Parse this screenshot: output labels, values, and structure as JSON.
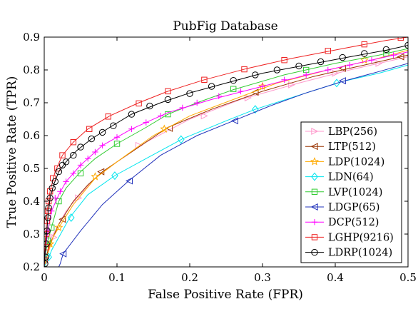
{
  "chart_data": {
    "type": "line",
    "title": "PubFig Database",
    "xlabel": "False Positive Rate (FPR)",
    "ylabel": "True Positive Rate (TPR)",
    "xlim": [
      0,
      0.5
    ],
    "ylim": [
      0.2,
      0.9
    ],
    "x_ticks": [
      "0",
      "0.1",
      "0.2",
      "0.3",
      "0.4",
      "0.5"
    ],
    "y_ticks": [
      "0.2",
      "0.3",
      "0.4",
      "0.5",
      "0.6",
      "0.7",
      "0.8",
      "0.9"
    ],
    "grid": false,
    "legend_position": "bottom-right",
    "series": [
      {
        "name": "LBP(256)",
        "color": "#ff99cc",
        "marker": "triangle-right",
        "points": [
          [
            0.0,
            0.2
          ],
          [
            0.002,
            0.22
          ],
          [
            0.005,
            0.25
          ],
          [
            0.01,
            0.29
          ],
          [
            0.02,
            0.33
          ],
          [
            0.03,
            0.37
          ],
          [
            0.045,
            0.41
          ],
          [
            0.07,
            0.47
          ],
          [
            0.1,
            0.52
          ],
          [
            0.14,
            0.58
          ],
          [
            0.2,
            0.65
          ],
          [
            0.27,
            0.71
          ],
          [
            0.35,
            0.76
          ],
          [
            0.42,
            0.8
          ],
          [
            0.5,
            0.84
          ]
        ],
        "markers": [
          [
            0.013,
            0.29
          ],
          [
            0.047,
            0.41
          ],
          [
            0.13,
            0.57
          ],
          [
            0.22,
            0.66
          ],
          [
            0.28,
            0.715
          ],
          [
            0.34,
            0.755
          ],
          [
            0.4,
            0.79
          ],
          [
            0.46,
            0.82
          ]
        ]
      },
      {
        "name": "LTP(512)",
        "color": "#993300",
        "marker": "triangle-left",
        "points": [
          [
            0.0,
            0.2
          ],
          [
            0.005,
            0.25
          ],
          [
            0.01,
            0.28
          ],
          [
            0.02,
            0.33
          ],
          [
            0.04,
            0.4
          ],
          [
            0.06,
            0.45
          ],
          [
            0.08,
            0.49
          ],
          [
            0.12,
            0.55
          ],
          [
            0.17,
            0.625
          ],
          [
            0.23,
            0.68
          ],
          [
            0.3,
            0.735
          ],
          [
            0.37,
            0.78
          ],
          [
            0.43,
            0.81
          ],
          [
            0.5,
            0.845
          ]
        ],
        "markers": [
          [
            0.025,
            0.345
          ],
          [
            0.078,
            0.49
          ],
          [
            0.172,
            0.622
          ],
          [
            0.29,
            0.732
          ],
          [
            0.41,
            0.805
          ],
          [
            0.49,
            0.84
          ]
        ]
      },
      {
        "name": "LDP(1024)",
        "color": "#ffaa00",
        "marker": "star",
        "points": [
          [
            0.0,
            0.2
          ],
          [
            0.005,
            0.24
          ],
          [
            0.012,
            0.29
          ],
          [
            0.02,
            0.32
          ],
          [
            0.04,
            0.39
          ],
          [
            0.07,
            0.47
          ],
          [
            0.1,
            0.52
          ],
          [
            0.15,
            0.6
          ],
          [
            0.2,
            0.66
          ],
          [
            0.26,
            0.71
          ],
          [
            0.32,
            0.76
          ],
          [
            0.39,
            0.8
          ],
          [
            0.45,
            0.83
          ],
          [
            0.5,
            0.86
          ]
        ],
        "markers": [
          [
            0.008,
            0.27
          ],
          [
            0.02,
            0.32
          ],
          [
            0.07,
            0.475
          ],
          [
            0.165,
            0.62
          ],
          [
            0.3,
            0.75
          ],
          [
            0.44,
            0.83
          ]
        ]
      },
      {
        "name": "LDN(64)",
        "color": "#00e5ee",
        "marker": "diamond",
        "points": [
          [
            0.0,
            0.2
          ],
          [
            0.005,
            0.22
          ],
          [
            0.01,
            0.25
          ],
          [
            0.02,
            0.29
          ],
          [
            0.035,
            0.35
          ],
          [
            0.06,
            0.42
          ],
          [
            0.097,
            0.478
          ],
          [
            0.14,
            0.53
          ],
          [
            0.19,
            0.59
          ],
          [
            0.25,
            0.645
          ],
          [
            0.29,
            0.68
          ],
          [
            0.36,
            0.73
          ],
          [
            0.41,
            0.765
          ],
          [
            0.46,
            0.79
          ],
          [
            0.5,
            0.815
          ]
        ],
        "markers": [
          [
            0.006,
            0.23
          ],
          [
            0.037,
            0.35
          ],
          [
            0.097,
            0.478
          ],
          [
            0.188,
            0.588
          ],
          [
            0.29,
            0.68
          ],
          [
            0.402,
            0.76
          ]
        ]
      },
      {
        "name": "LVP(1024)",
        "color": "#33cc33",
        "marker": "square",
        "points": [
          [
            0.0,
            0.2
          ],
          [
            0.002,
            0.24
          ],
          [
            0.005,
            0.28
          ],
          [
            0.01,
            0.32
          ],
          [
            0.02,
            0.4
          ],
          [
            0.03,
            0.44
          ],
          [
            0.05,
            0.49
          ],
          [
            0.07,
            0.53
          ],
          [
            0.1,
            0.575
          ],
          [
            0.14,
            0.625
          ],
          [
            0.17,
            0.665
          ],
          [
            0.21,
            0.7
          ],
          [
            0.26,
            0.74
          ],
          [
            0.33,
            0.785
          ],
          [
            0.4,
            0.82
          ],
          [
            0.46,
            0.845
          ],
          [
            0.5,
            0.865
          ]
        ],
        "markers": [
          [
            0.005,
            0.28
          ],
          [
            0.01,
            0.32
          ],
          [
            0.02,
            0.4
          ],
          [
            0.05,
            0.485
          ],
          [
            0.1,
            0.575
          ],
          [
            0.17,
            0.665
          ],
          [
            0.26,
            0.742
          ],
          [
            0.36,
            0.8
          ],
          [
            0.47,
            0.85
          ]
        ]
      },
      {
        "name": "LDGP(65)",
        "color": "#2233bb",
        "marker": "triangle-left",
        "points": [
          [
            0.02,
            0.2
          ],
          [
            0.022,
            0.21
          ],
          [
            0.026,
            0.24
          ],
          [
            0.05,
            0.31
          ],
          [
            0.08,
            0.39
          ],
          [
            0.115,
            0.46
          ],
          [
            0.16,
            0.54
          ],
          [
            0.21,
            0.6
          ],
          [
            0.26,
            0.645
          ],
          [
            0.31,
            0.69
          ],
          [
            0.36,
            0.73
          ],
          [
            0.41,
            0.765
          ],
          [
            0.46,
            0.795
          ],
          [
            0.5,
            0.82
          ]
        ],
        "markers": [
          [
            0.026,
            0.24
          ],
          [
            0.117,
            0.462
          ],
          [
            0.262,
            0.645
          ],
          [
            0.41,
            0.767
          ]
        ]
      },
      {
        "name": "DCP(512)",
        "color": "#ff00ff",
        "marker": "plus",
        "points": [
          [
            0.0,
            0.2
          ],
          [
            0.002,
            0.26
          ],
          [
            0.005,
            0.31
          ],
          [
            0.01,
            0.37
          ],
          [
            0.02,
            0.42
          ],
          [
            0.03,
            0.46
          ],
          [
            0.05,
            0.51
          ],
          [
            0.08,
            0.57
          ],
          [
            0.12,
            0.62
          ],
          [
            0.17,
            0.67
          ],
          [
            0.23,
            0.71
          ],
          [
            0.3,
            0.75
          ],
          [
            0.37,
            0.79
          ],
          [
            0.44,
            0.825
          ],
          [
            0.5,
            0.855
          ]
        ],
        "markers": [
          [
            0.005,
            0.31
          ],
          [
            0.01,
            0.37
          ],
          [
            0.015,
            0.41
          ],
          [
            0.022,
            0.43
          ],
          [
            0.03,
            0.46
          ],
          [
            0.04,
            0.485
          ],
          [
            0.05,
            0.51
          ],
          [
            0.06,
            0.53
          ],
          [
            0.07,
            0.55
          ],
          [
            0.08,
            0.57
          ],
          [
            0.1,
            0.595
          ],
          [
            0.12,
            0.62
          ],
          [
            0.14,
            0.64
          ],
          [
            0.16,
            0.66
          ],
          [
            0.19,
            0.685
          ],
          [
            0.21,
            0.7
          ],
          [
            0.24,
            0.72
          ],
          [
            0.27,
            0.735
          ],
          [
            0.3,
            0.75
          ],
          [
            0.33,
            0.77
          ],
          [
            0.36,
            0.785
          ],
          [
            0.39,
            0.8
          ],
          [
            0.42,
            0.815
          ],
          [
            0.45,
            0.83
          ],
          [
            0.48,
            0.845
          ]
        ]
      },
      {
        "name": "LGHP(9216)",
        "color": "#ee2222",
        "marker": "square",
        "points": [
          [
            0.0,
            0.2
          ],
          [
            0.001,
            0.25
          ],
          [
            0.002,
            0.3
          ],
          [
            0.004,
            0.37
          ],
          [
            0.008,
            0.43
          ],
          [
            0.015,
            0.49
          ],
          [
            0.025,
            0.54
          ],
          [
            0.04,
            0.58
          ],
          [
            0.06,
            0.62
          ],
          [
            0.09,
            0.66
          ],
          [
            0.13,
            0.7
          ],
          [
            0.17,
            0.735
          ],
          [
            0.22,
            0.77
          ],
          [
            0.28,
            0.805
          ],
          [
            0.34,
            0.835
          ],
          [
            0.41,
            0.865
          ],
          [
            0.47,
            0.89
          ],
          [
            0.5,
            0.9
          ]
        ],
        "markers": [
          [
            0.001,
            0.22
          ],
          [
            0.002,
            0.26
          ],
          [
            0.003,
            0.3
          ],
          [
            0.004,
            0.34
          ],
          [
            0.005,
            0.37
          ],
          [
            0.006,
            0.4
          ],
          [
            0.008,
            0.43
          ],
          [
            0.012,
            0.47
          ],
          [
            0.018,
            0.5
          ],
          [
            0.025,
            0.54
          ],
          [
            0.04,
            0.58
          ],
          [
            0.062,
            0.62
          ],
          [
            0.088,
            0.658
          ],
          [
            0.13,
            0.698
          ],
          [
            0.17,
            0.735
          ],
          [
            0.22,
            0.77
          ],
          [
            0.275,
            0.802
          ],
          [
            0.33,
            0.83
          ],
          [
            0.39,
            0.858
          ],
          [
            0.44,
            0.878
          ],
          [
            0.49,
            0.898
          ]
        ]
      },
      {
        "name": "LDRP(1024)",
        "color": "#000000",
        "marker": "circle",
        "points": [
          [
            0.0,
            0.2
          ],
          [
            0.001,
            0.24
          ],
          [
            0.003,
            0.29
          ],
          [
            0.005,
            0.35
          ],
          [
            0.008,
            0.41
          ],
          [
            0.013,
            0.45
          ],
          [
            0.02,
            0.49
          ],
          [
            0.03,
            0.52
          ],
          [
            0.045,
            0.555
          ],
          [
            0.065,
            0.59
          ],
          [
            0.09,
            0.625
          ],
          [
            0.12,
            0.665
          ],
          [
            0.16,
            0.7
          ],
          [
            0.2,
            0.73
          ],
          [
            0.25,
            0.76
          ],
          [
            0.3,
            0.79
          ],
          [
            0.36,
            0.815
          ],
          [
            0.42,
            0.84
          ],
          [
            0.47,
            0.86
          ],
          [
            0.5,
            0.875
          ]
        ],
        "markers": [
          [
            0.001,
            0.21
          ],
          [
            0.002,
            0.23
          ],
          [
            0.003,
            0.27
          ],
          [
            0.004,
            0.31
          ],
          [
            0.005,
            0.35
          ],
          [
            0.006,
            0.38
          ],
          [
            0.008,
            0.41
          ],
          [
            0.011,
            0.44
          ],
          [
            0.015,
            0.46
          ],
          [
            0.02,
            0.49
          ],
          [
            0.025,
            0.51
          ],
          [
            0.03,
            0.52
          ],
          [
            0.04,
            0.54
          ],
          [
            0.05,
            0.565
          ],
          [
            0.065,
            0.59
          ],
          [
            0.08,
            0.61
          ],
          [
            0.095,
            0.63
          ],
          [
            0.12,
            0.665
          ],
          [
            0.145,
            0.69
          ],
          [
            0.17,
            0.71
          ],
          [
            0.2,
            0.728
          ],
          [
            0.23,
            0.75
          ],
          [
            0.26,
            0.768
          ],
          [
            0.29,
            0.785
          ],
          [
            0.32,
            0.8
          ],
          [
            0.35,
            0.812
          ],
          [
            0.38,
            0.825
          ],
          [
            0.41,
            0.838
          ],
          [
            0.44,
            0.85
          ],
          [
            0.47,
            0.862
          ],
          [
            0.5,
            0.875
          ]
        ]
      }
    ]
  }
}
